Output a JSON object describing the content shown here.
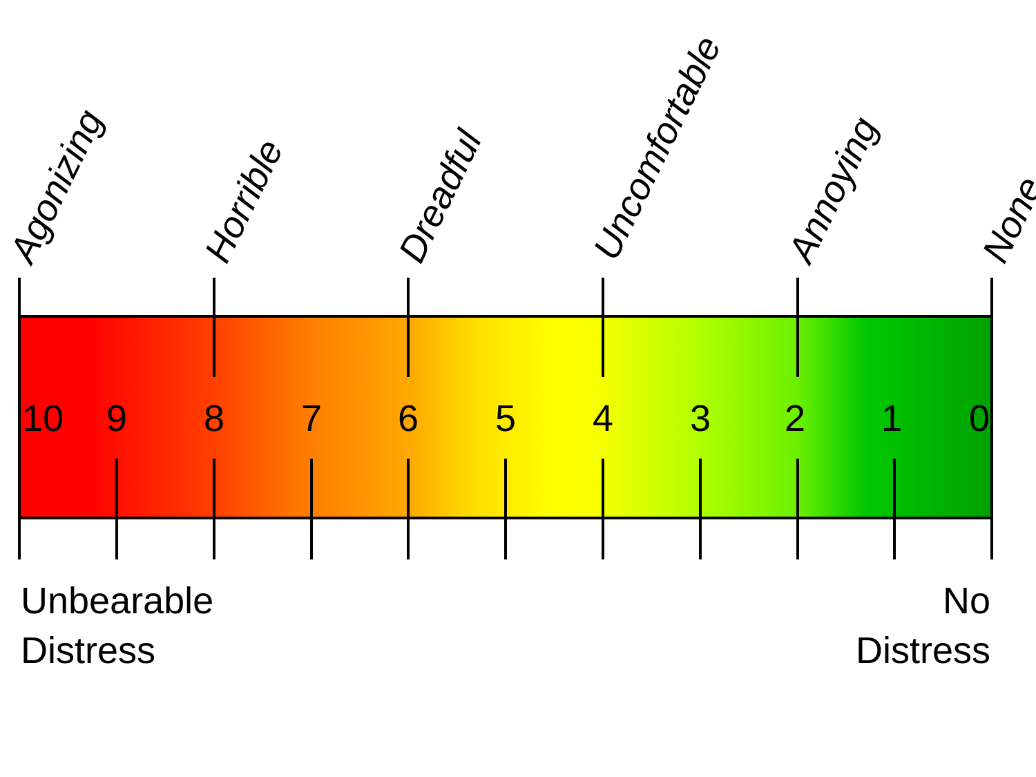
{
  "scale": {
    "numbers": [
      "10",
      "9",
      "8",
      "7",
      "6",
      "5",
      "4",
      "3",
      "2",
      "1",
      "0"
    ],
    "words": [
      "Agonizing",
      "Horrible",
      "Dreadful",
      "Uncomfortable",
      "Annoying",
      "None"
    ],
    "left_end": {
      "line1": "Unbearable",
      "line2": "Distress"
    },
    "right_end": {
      "line1": "No",
      "line2": "Distress"
    }
  },
  "colors": {
    "red": "#ff0000",
    "orange": "#ff8000",
    "yellow": "#ffff00",
    "lime": "#aaff00",
    "green": "#00c000",
    "dark_green": "#00a000",
    "outline": "#000000"
  }
}
